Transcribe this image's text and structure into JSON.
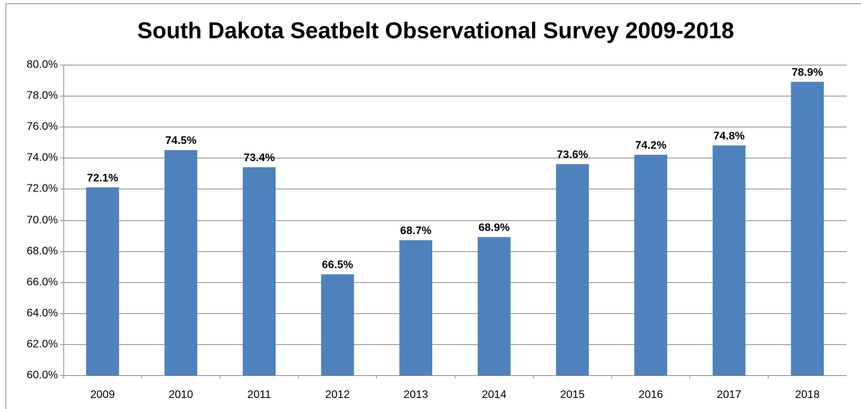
{
  "chart_data": {
    "type": "bar",
    "title": "South Dakota Seatbelt Observational Survey 2009-2018",
    "categories": [
      "2009",
      "2010",
      "2011",
      "2012",
      "2013",
      "2014",
      "2015",
      "2016",
      "2017",
      "2018"
    ],
    "values": [
      72.1,
      74.5,
      73.4,
      66.5,
      68.7,
      68.9,
      73.6,
      74.2,
      74.8,
      78.9
    ],
    "value_labels": [
      "72.1%",
      "74.5%",
      "73.4%",
      "66.5%",
      "68.7%",
      "68.9%",
      "73.6%",
      "74.2%",
      "74.8%",
      "78.9%"
    ],
    "color": "#4f81bd",
    "ylim": [
      60,
      80
    ],
    "yticks": [
      {
        "value": 60,
        "label": "60.0%"
      },
      {
        "value": 62,
        "label": "62.0%"
      },
      {
        "value": 64,
        "label": "64.0%"
      },
      {
        "value": 66,
        "label": "66.0%"
      },
      {
        "value": 68,
        "label": "68.0%"
      },
      {
        "value": 70,
        "label": "70.0%"
      },
      {
        "value": 72,
        "label": "72.0%"
      },
      {
        "value": 74,
        "label": "74.0%"
      },
      {
        "value": 76,
        "label": "76.0%"
      },
      {
        "value": 78,
        "label": "78.0%"
      },
      {
        "value": 80,
        "label": "80.0%"
      }
    ],
    "grid": true
  }
}
